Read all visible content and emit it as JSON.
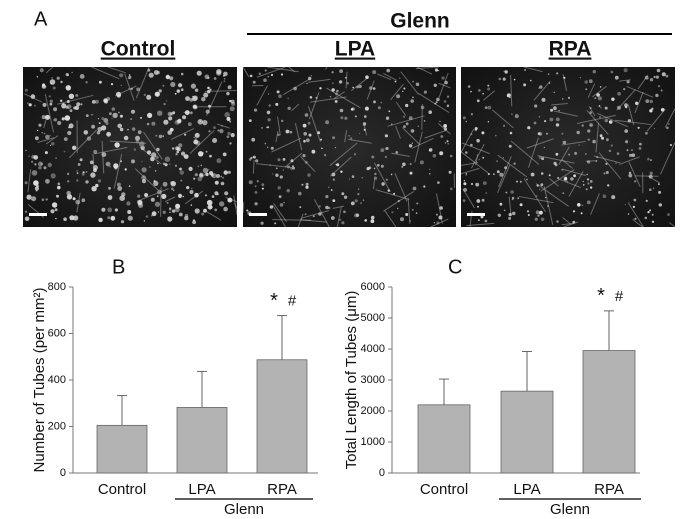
{
  "panel_a": {
    "panel": "A",
    "group_label": "Glenn",
    "images": [
      "Control",
      "LPA",
      "RPA"
    ]
  },
  "chart_data": [
    {
      "type": "bar",
      "panel": "B",
      "y_label": "Number of Tubes (per mm²)",
      "categories": [
        "Control",
        "LPA",
        "RPA"
      ],
      "group_label": "Glenn",
      "values": [
        205,
        282,
        487
      ],
      "errors": [
        128,
        155,
        190
      ],
      "annotations": [
        "*",
        "#"
      ],
      "color": "#b3b3b3",
      "ylim": [
        0,
        800
      ],
      "yticks": [
        0,
        200,
        400,
        600,
        800
      ]
    },
    {
      "type": "bar",
      "panel": "C",
      "y_label": "Total Length of Tubes (μm)",
      "categories": [
        "Control",
        "LPA",
        "RPA"
      ],
      "group_label": "Glenn",
      "values": [
        2200,
        2640,
        3950
      ],
      "errors": [
        830,
        1280,
        1280
      ],
      "annotations": [
        "*",
        "#"
      ],
      "color": "#b3b3b3",
      "ylim": [
        0,
        6000
      ],
      "yticks": [
        0,
        1000,
        2000,
        3000,
        4000,
        5000,
        6000
      ]
    }
  ]
}
